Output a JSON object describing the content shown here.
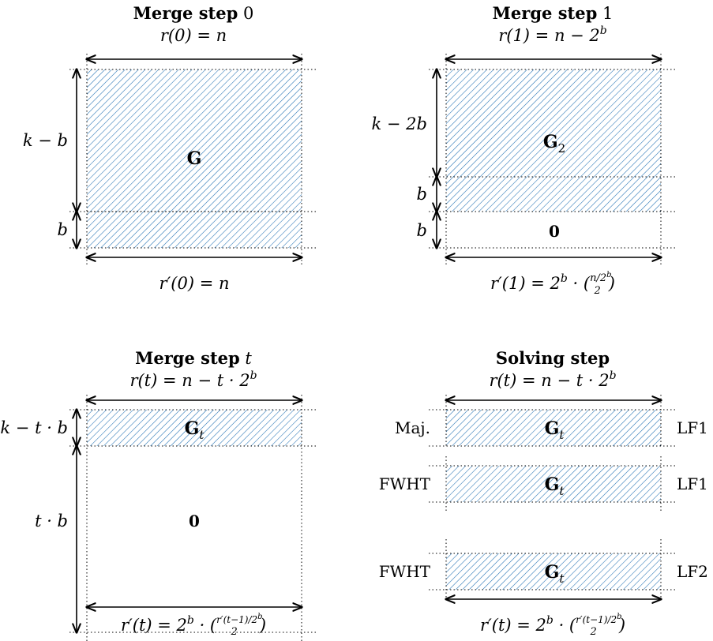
{
  "panels": {
    "merge0": {
      "heading": "Merge step",
      "step": "0",
      "top": "r(0) = n",
      "height": "k − b",
      "rows": "b",
      "matrix": "G",
      "bottom": "r′(0) = n"
    },
    "merge1": {
      "heading": "Merge step",
      "step": "1",
      "top": "r(1) = n − 2",
      "top_sup": "b",
      "height": "k − 2b",
      "rows_a": "b",
      "rows_b": "b",
      "matrix": "G",
      "matrix_sub": "2",
      "zero": "0",
      "bottom": "r′(1) = 2",
      "bottom_sup": "b",
      "bottom_mid": " · (",
      "binom_top": "n/2",
      "binom_top_sup": "b",
      "binom_bottom": "2",
      "bottom_end": ")"
    },
    "merget": {
      "heading": "Merge step",
      "step": "t",
      "top": "r(t) = n − t · 2",
      "top_sup": "b",
      "height_a": "k − t · b",
      "height_b": "t · b",
      "matrix": "G",
      "matrix_sub": "t",
      "zero": "0",
      "bottom": "r′(t) = 2",
      "bottom_sup": "b",
      "bottom_mid": " · (",
      "binom_top": "r′(t−1)/2",
      "binom_top_sup": "b",
      "binom_bottom": "2",
      "bottom_end": ")"
    },
    "solving": {
      "heading": "Solving step",
      "top": "r(t) = n − t · 2",
      "top_sup": "b",
      "matrix": "G",
      "matrix_sub": "t",
      "left_labels": [
        "Maj.",
        "FWHT",
        "FWHT"
      ],
      "right_labels": [
        "LF1",
        "LF1",
        "LF2"
      ],
      "bottom": "r′(t) = 2",
      "bottom_sup": "b",
      "bottom_mid": " · (",
      "binom_top": "r′(t−1)/2",
      "binom_top_sup": "b",
      "binom_bottom": "2",
      "bottom_end": ")"
    }
  },
  "colors": {
    "hatch": "#1f6fb2",
    "line": "#000000"
  }
}
